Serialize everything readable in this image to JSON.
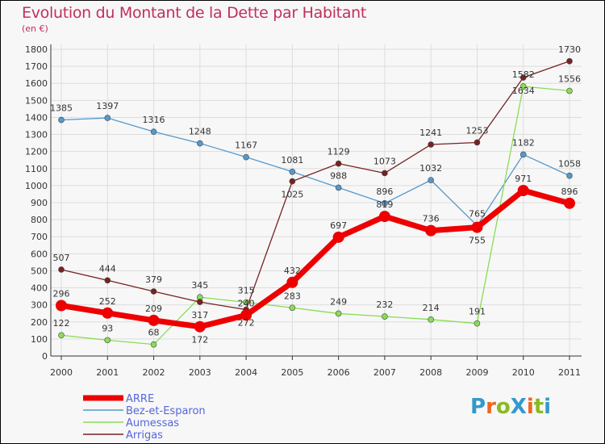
{
  "chart_data": {
    "type": "line",
    "title": "Evolution du Montant de la Dette par Habitant",
    "subtitle": "(en €)",
    "xlabel": "",
    "ylabel": "",
    "x": [
      "2000",
      "2001",
      "2002",
      "2003",
      "2004",
      "2005",
      "2006",
      "2007",
      "2008",
      "2009",
      "2010",
      "2011"
    ],
    "ylim": [
      0,
      1800
    ],
    "yticks": [
      0,
      100,
      200,
      300,
      400,
      500,
      600,
      700,
      800,
      900,
      1000,
      1100,
      1200,
      1300,
      1400,
      1500,
      1600,
      1700,
      1800
    ],
    "grid": true,
    "legend_position": "bottom-left",
    "series": [
      {
        "name": "ARRE",
        "color": "#ee0000",
        "values": [
          296,
          252,
          209,
          172,
          240,
          432,
          697,
          819,
          736,
          755,
          971,
          896
        ]
      },
      {
        "name": "Bez-et-Esparon",
        "color": "#5599cc",
        "values": [
          1385,
          1397,
          1316,
          1248,
          1167,
          1081,
          988,
          896,
          1032,
          765,
          1182,
          1058
        ]
      },
      {
        "name": "Aumessas",
        "color": "#88dd55",
        "values": [
          122,
          93,
          68,
          345,
          315,
          283,
          249,
          232,
          214,
          191,
          1582,
          1556
        ]
      },
      {
        "name": "Arrigas",
        "color": "#772222",
        "values": [
          507,
          444,
          379,
          317,
          272,
          1025,
          1129,
          1073,
          1241,
          1253,
          1634,
          1730
        ]
      }
    ]
  },
  "logo": "ProXiti"
}
